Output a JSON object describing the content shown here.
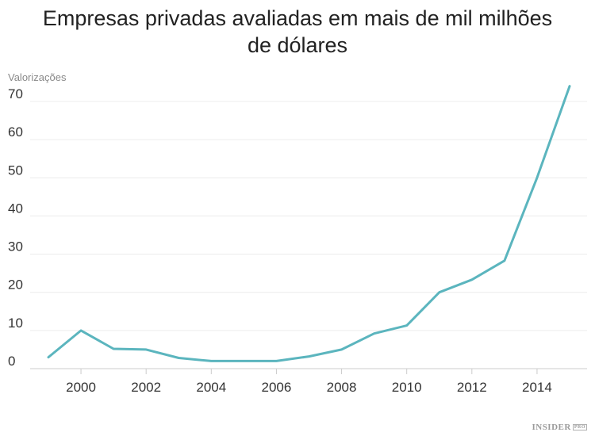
{
  "chart_data": {
    "type": "line",
    "title_line1": "Empresas privadas avaliadas em mais de mil milhões",
    "title_line2": "de dólares",
    "title": "Empresas privadas avaliadas em mais de mil milhões de dólares",
    "xlabel": "",
    "ylabel": "Valorizações",
    "x": [
      1999,
      2000,
      2001,
      2002,
      2003,
      2004,
      2005,
      2006,
      2007,
      2008,
      2009,
      2010,
      2011,
      2012,
      2013,
      2014,
      2015
    ],
    "series": [
      {
        "name": "Valorizações",
        "color": "#5bb5be",
        "values": [
          3,
          10,
          5.2,
          5,
          2.8,
          2,
          2,
          2,
          3.2,
          5,
          9.2,
          11.3,
          20,
          23.3,
          28.3,
          50,
          74
        ]
      }
    ],
    "xticks": [
      "2000",
      "2002",
      "2004",
      "2006",
      "2008",
      "2010",
      "2012",
      "2014"
    ],
    "xtick_values": [
      2000,
      2002,
      2004,
      2006,
      2008,
      2010,
      2012,
      2014
    ],
    "yticks": [
      "0",
      "10",
      "20",
      "30",
      "40",
      "50",
      "60",
      "70"
    ],
    "ytick_values": [
      0,
      10,
      20,
      30,
      40,
      50,
      60,
      70
    ],
    "xlim": [
      1999,
      2015
    ],
    "ylim": [
      0,
      70
    ],
    "grid": true,
    "legend": "none"
  },
  "branding": {
    "logo": "INSIDER",
    "logo_suffix": "PRO"
  }
}
